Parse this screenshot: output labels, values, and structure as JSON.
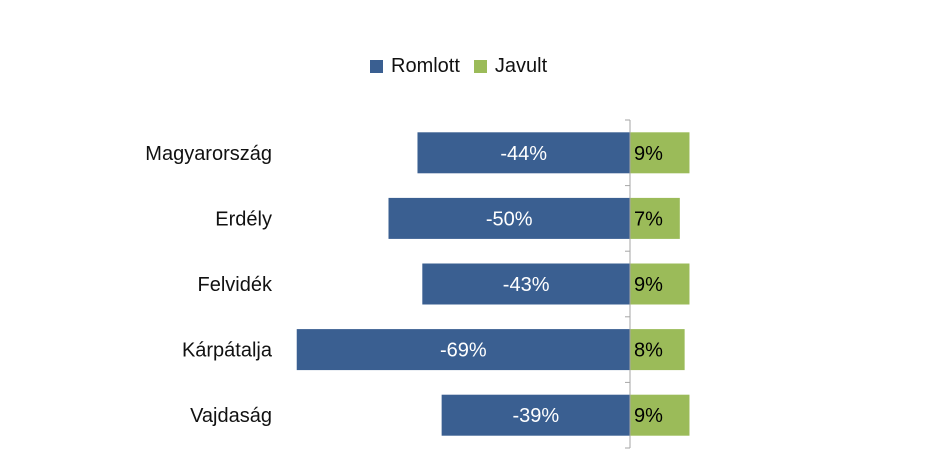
{
  "chart_data": {
    "type": "bar",
    "orientation": "horizontal",
    "diverging": true,
    "categories": [
      "Magyarország",
      "Erdély",
      "Felvidék",
      "Kárpátalja",
      "Vajdaság"
    ],
    "series": [
      {
        "name": "Romlott",
        "values": [
          -44,
          -50,
          -43,
          -69,
          -39
        ],
        "labels": [
          "-44%",
          "-50%",
          "-43%",
          "-69%",
          "-39%"
        ],
        "color": "#3a5f91"
      },
      {
        "name": "Javult",
        "values": [
          9,
          7,
          9,
          8,
          9
        ],
        "labels": [
          "9%",
          "7%",
          "9%",
          "8%",
          "9%"
        ],
        "color": "#9bbb59"
      }
    ],
    "legend_position": "top",
    "grid": false
  }
}
